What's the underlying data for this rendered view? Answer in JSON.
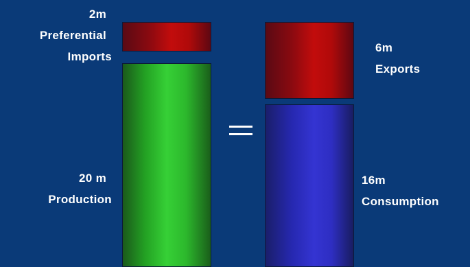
{
  "diagram": {
    "left": {
      "imports": {
        "amount": "2m",
        "label_line1": "Preferential",
        "label_line2": "Imports",
        "value": 2
      },
      "production": {
        "amount": "20 m",
        "label": "Production",
        "value": 20
      }
    },
    "equals_symbol": "=",
    "right": {
      "exports": {
        "amount": "6m",
        "label": "Exports",
        "value": 6
      },
      "consumption": {
        "amount": "16m",
        "label": "Consumption",
        "value": 16
      }
    },
    "colors": {
      "background": "#0a3a78",
      "imports": "#c20c0c",
      "production": "#36d036",
      "exports": "#c20c0c",
      "consumption": "#3434d2",
      "text": "#ffffff"
    }
  }
}
